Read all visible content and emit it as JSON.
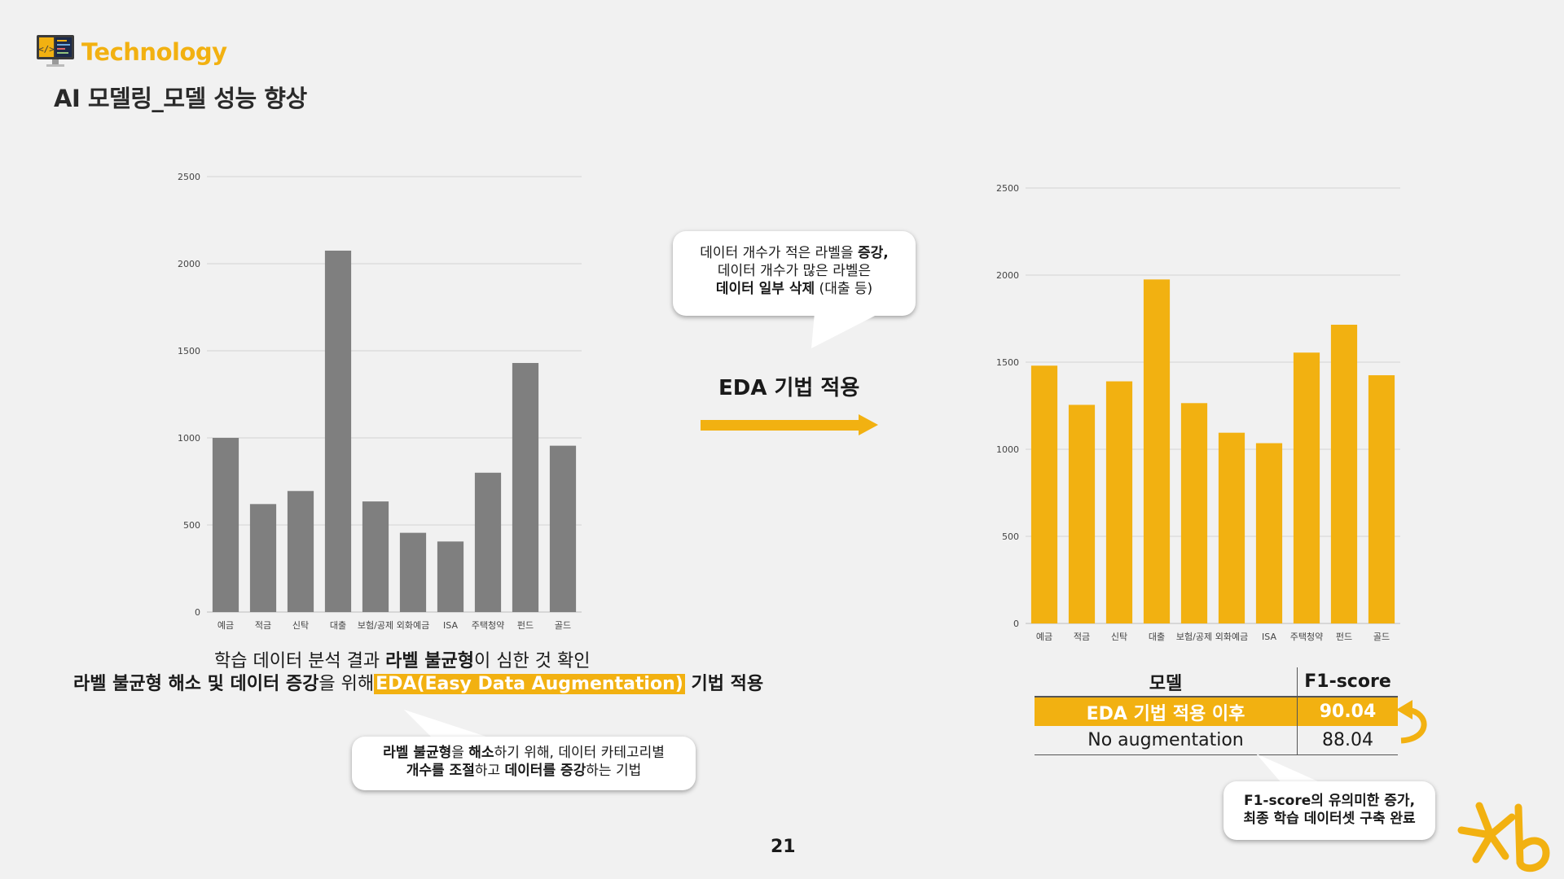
{
  "header": {
    "brand": "Technology",
    "title": "AI 모델링_모델 성능 향상",
    "logo_icon": "monitor-code-icon"
  },
  "chart_data": [
    {
      "type": "bar",
      "categories": [
        "예금",
        "적금",
        "신탁",
        "대출",
        "보험/공제",
        "외화예금",
        "ISA",
        "주택청약",
        "펀드",
        "골드"
      ],
      "values": [
        1000,
        620,
        695,
        2075,
        635,
        455,
        405,
        800,
        1430,
        955
      ],
      "yticks": [
        0,
        500,
        1000,
        1500,
        2000,
        2500
      ],
      "ylim": [
        0,
        2500
      ],
      "color": "#7f7f7f",
      "grid": true
    },
    {
      "type": "bar",
      "categories": [
        "예금",
        "적금",
        "신탁",
        "대출",
        "보험/공제",
        "외화예금",
        "ISA",
        "주택청약",
        "펀드",
        "골드"
      ],
      "values": [
        1480,
        1255,
        1390,
        1975,
        1265,
        1095,
        1035,
        1555,
        1715,
        1425
      ],
      "yticks": [
        0,
        500,
        1000,
        1500,
        2000,
        2500
      ],
      "ylim": [
        0,
        2500
      ],
      "color": "#f2b111",
      "grid": true
    }
  ],
  "caption": {
    "line1_a": "학습 데이터 분석 결과 ",
    "line1_b": "라벨 불균형",
    "line1_c": "이 심한 것 확인",
    "line2_a": "라벨 불균형 해소 및 데이터 증강",
    "line2_b": "을 위해",
    "line2_hl": "EDA(Easy Data Augmentation)",
    "line2_c": " 기법 적용"
  },
  "bubble_left": {
    "l1_a": "라벨 불균형",
    "l1_b": "을 ",
    "l1_c": "해소",
    "l1_d": "하기 위해, 데이터 카테고리별",
    "l2_a": "개수를 조절",
    "l2_b": "하고 ",
    "l2_c": "데이터를 증강",
    "l2_d": "하는 기법"
  },
  "bubble_top": {
    "l1_a": "데이터 개수가 적은 라벨을 ",
    "l1_b": "증강,",
    "l2": "데이터 개수가 많은 라벨은",
    "l3_a": "데이터 일부 삭제",
    "l3_b": " (대출 등)"
  },
  "arrow_label": "EDA 기법 적용",
  "f1_table": {
    "header_model": "모델",
    "header_score": "F1-score",
    "rows": [
      {
        "model": "EDA 기법 적용 이후",
        "score": "90.04"
      },
      {
        "model": "No augmentation",
        "score": "88.04"
      }
    ]
  },
  "bubble_right": {
    "l1": "F1-score의 유의미한 증가,",
    "l2": "최종 학습 데이터셋 구축 완료"
  },
  "page_number": "21",
  "colors": {
    "accent": "#f2b111",
    "gray_bar": "#7f7f7f"
  },
  "footer_logo_icon": "kb-star-logo"
}
